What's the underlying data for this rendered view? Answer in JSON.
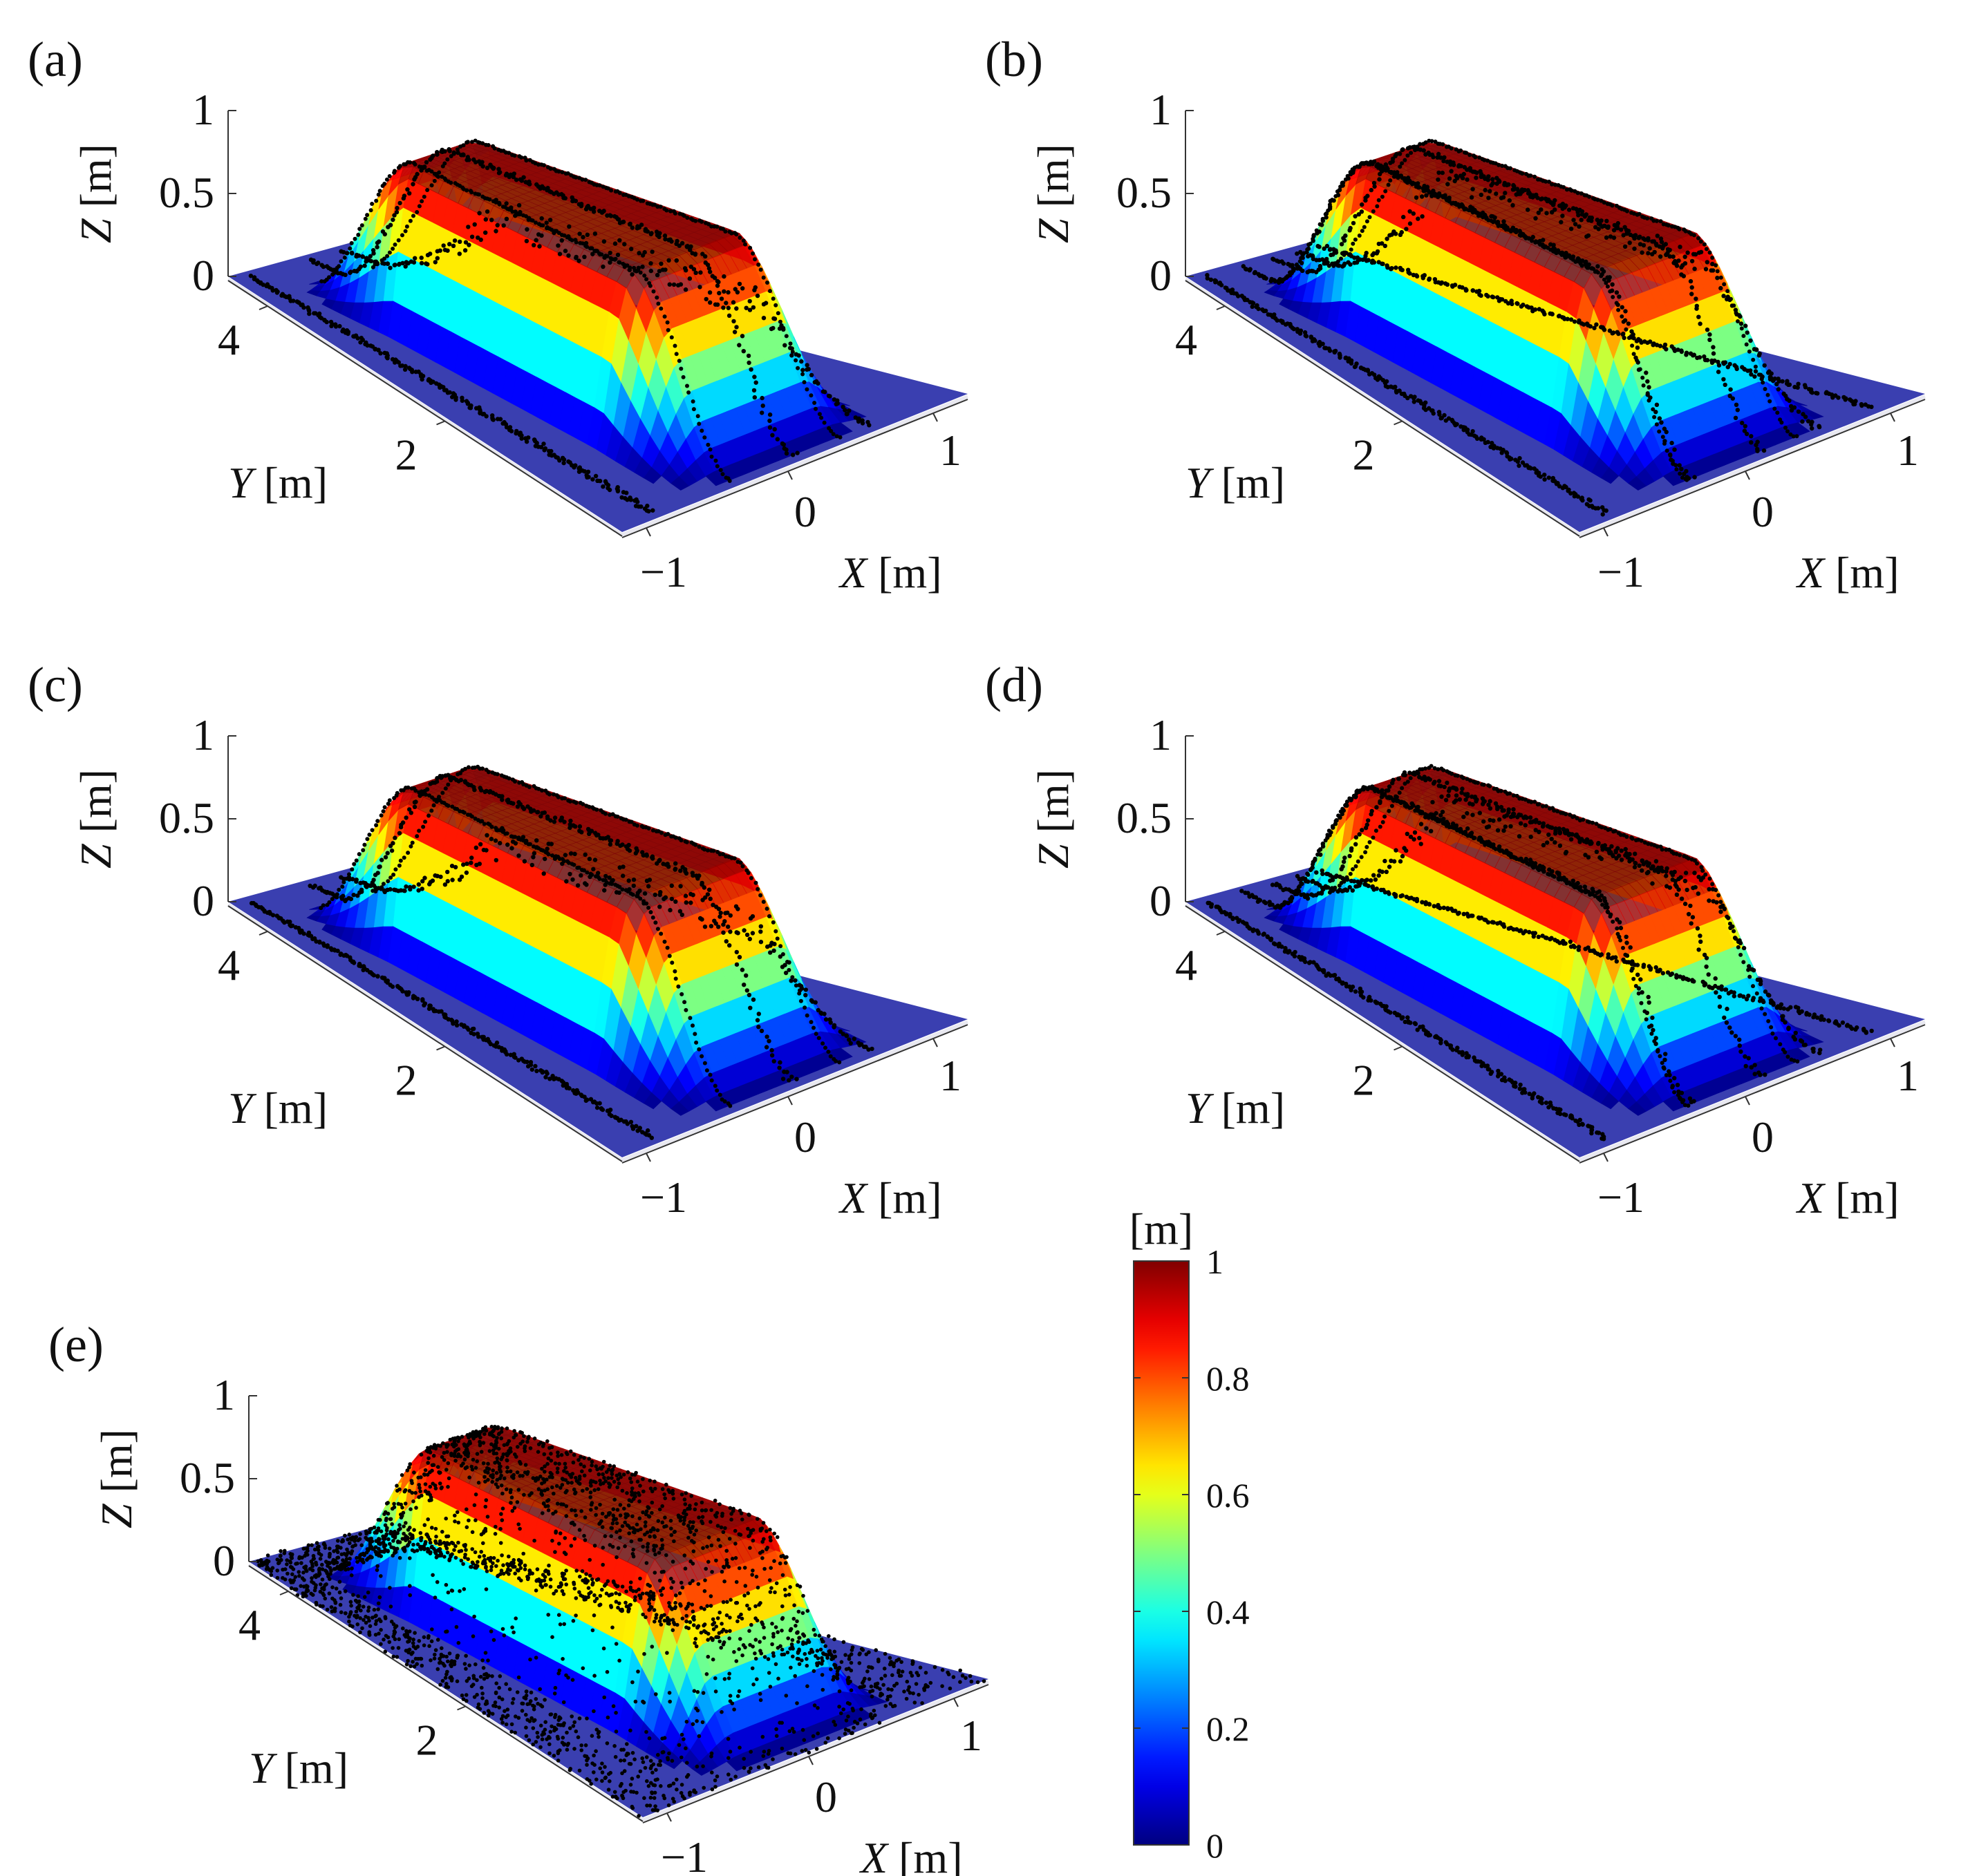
{
  "figure": {
    "panel_labels": [
      "(a)",
      "(b)",
      "(c)",
      "(d)",
      "(e)"
    ],
    "colorbar": {
      "unit": "[m]",
      "ticks": [
        "1",
        "0.8",
        "0.6",
        "0.4",
        "0.2",
        "0"
      ],
      "colormap": "jet",
      "range": [
        0,
        1
      ]
    }
  },
  "chart_data": [
    {
      "type": "surface3d",
      "panel": "(a)",
      "xlabel": "X [m]",
      "ylabel": "Y [m]",
      "zlabel": "Z [m]",
      "x_ticks": [
        "−1",
        "0",
        "1"
      ],
      "y_ticks": [
        "4",
        "2"
      ],
      "z_ticks": [
        "1",
        "0.5",
        "0"
      ],
      "xlim": [
        -1.2,
        1.2
      ],
      "ylim": [
        0,
        4.5
      ],
      "zlim": [
        0,
        1
      ],
      "scan_lines": 3,
      "point_style": "transects"
    },
    {
      "type": "surface3d",
      "panel": "(b)",
      "xlabel": "X [m]",
      "ylabel": "Y [m]",
      "zlabel": "Z [m]",
      "x_ticks": [
        "−1",
        "0",
        "1"
      ],
      "y_ticks": [
        "4",
        "2"
      ],
      "z_ticks": [
        "1",
        "0.5",
        "0"
      ],
      "xlim": [
        -1.2,
        1.2
      ],
      "ylim": [
        0,
        4.5
      ],
      "zlim": [
        0,
        1
      ],
      "scan_lines": 5,
      "point_style": "transects"
    },
    {
      "type": "surface3d",
      "panel": "(c)",
      "xlabel": "X [m]",
      "ylabel": "Y [m]",
      "zlabel": "Z [m]",
      "x_ticks": [
        "−1",
        "0",
        "1"
      ],
      "y_ticks": [
        "4",
        "2"
      ],
      "z_ticks": [
        "1",
        "0.5",
        "0"
      ],
      "xlim": [
        -1.2,
        1.2
      ],
      "ylim": [
        0,
        4.5
      ],
      "zlim": [
        0,
        1
      ],
      "scan_lines": 3,
      "point_style": "transects"
    },
    {
      "type": "surface3d",
      "panel": "(d)",
      "xlabel": "X [m]",
      "ylabel": "Y [m]",
      "zlabel": "Z [m]",
      "x_ticks": [
        "−1",
        "0",
        "1"
      ],
      "y_ticks": [
        "4",
        "2"
      ],
      "z_ticks": [
        "1",
        "0.5",
        "0"
      ],
      "xlim": [
        -1.2,
        1.2
      ],
      "ylim": [
        0,
        4.5
      ],
      "zlim": [
        0,
        1
      ],
      "scan_lines": 5,
      "point_style": "transects"
    },
    {
      "type": "surface3d",
      "panel": "(e)",
      "xlabel": "X [m]",
      "ylabel": "Y [m]",
      "zlabel": "Z [m]",
      "x_ticks": [
        "−1",
        "0",
        "1"
      ],
      "y_ticks": [
        "4",
        "2"
      ],
      "z_ticks": [
        "1",
        "0.5",
        "0"
      ],
      "xlim": [
        -1.2,
        1.2
      ],
      "ylim": [
        0,
        4.5
      ],
      "zlim": [
        0,
        1
      ],
      "scan_lines": 0,
      "point_style": "dense_cloud"
    }
  ]
}
